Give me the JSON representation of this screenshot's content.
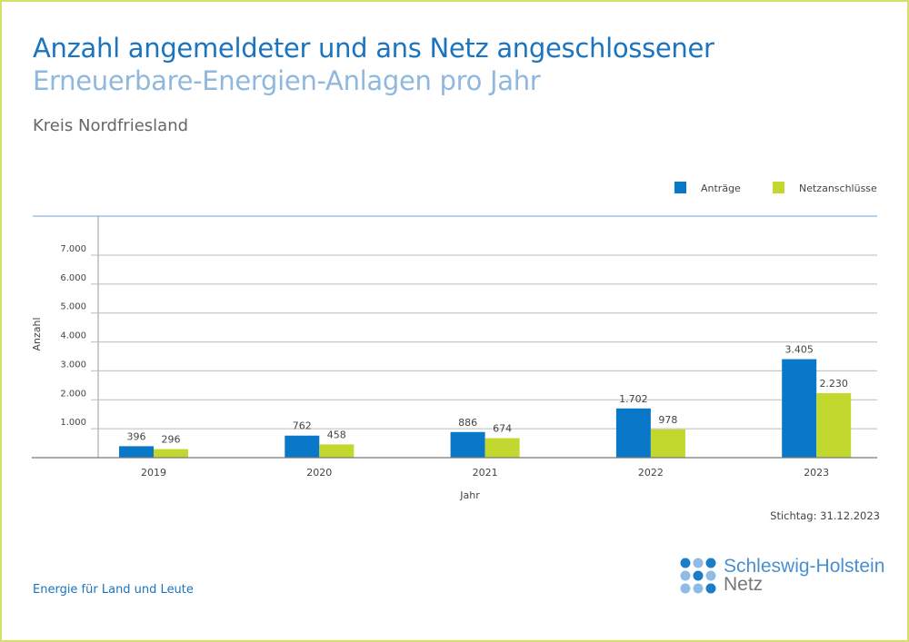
{
  "header": {
    "title_line1": "Anzahl angemeldeter und ans Netz angeschlossener",
    "title_line2": "Erneuerbare-Energien-Anlagen pro Jahr",
    "subtitle": "Kreis Nordfriesland"
  },
  "chart_data": {
    "type": "bar",
    "categories": [
      "2019",
      "2020",
      "2021",
      "2022",
      "2023"
    ],
    "series": [
      {
        "name": "Anträge",
        "color": "#0a78c8",
        "values": [
          396,
          762,
          886,
          1702,
          3405
        ],
        "labels": [
          "396",
          "762",
          "886",
          "1.702",
          "3.405"
        ]
      },
      {
        "name": "Netzanschlüsse",
        "color": "#c3d82e",
        "values": [
          296,
          458,
          674,
          978,
          2230
        ],
        "labels": [
          "296",
          "458",
          "674",
          "978",
          "2.230"
        ]
      }
    ],
    "xlabel": "Jahr",
    "ylabel": "Anzahl",
    "ylim": [
      0,
      7000
    ],
    "yticks": [
      1000,
      2000,
      3000,
      4000,
      5000,
      6000,
      7000
    ],
    "ytick_labels": [
      "1.000",
      "2.000",
      "3.000",
      "4.000",
      "5.000",
      "6.000",
      "7.000"
    ],
    "grid": true,
    "legend": "top-right"
  },
  "footer": {
    "stichtag": "Stichtag: 31.12.2023",
    "slogan": "Energie für Land und Leute",
    "logo_line1": "Schleswig-Holstein",
    "logo_line2": "Netz"
  }
}
